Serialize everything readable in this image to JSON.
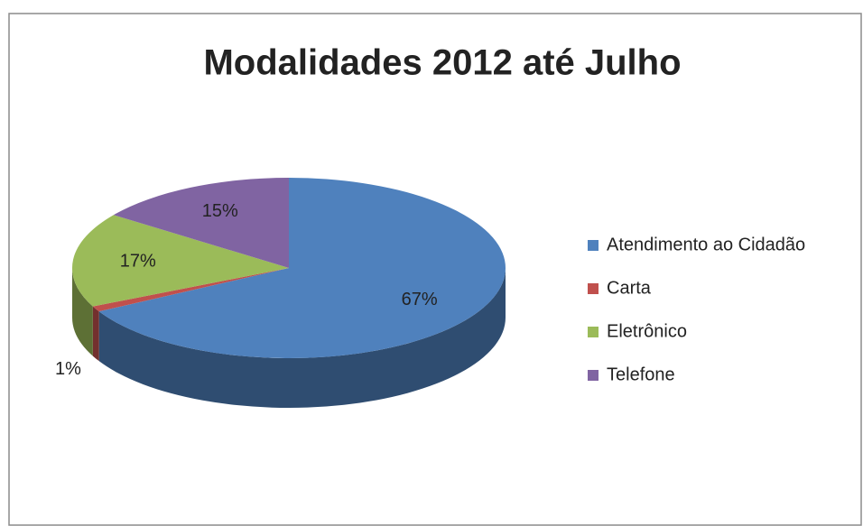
{
  "chart_data": {
    "type": "pie",
    "title": "Modalidades 2012 até Julho",
    "categories": [
      "Atendimento ao Cidadão",
      "Carta",
      "Eletrônico",
      "Telefone"
    ],
    "values": [
      67,
      1,
      17,
      15
    ],
    "value_labels": [
      "67%",
      "1%",
      "17%",
      "15%"
    ],
    "colors": [
      "#4f81bd",
      "#c0504d",
      "#9bbb59",
      "#8064a2"
    ],
    "legend": "right"
  }
}
